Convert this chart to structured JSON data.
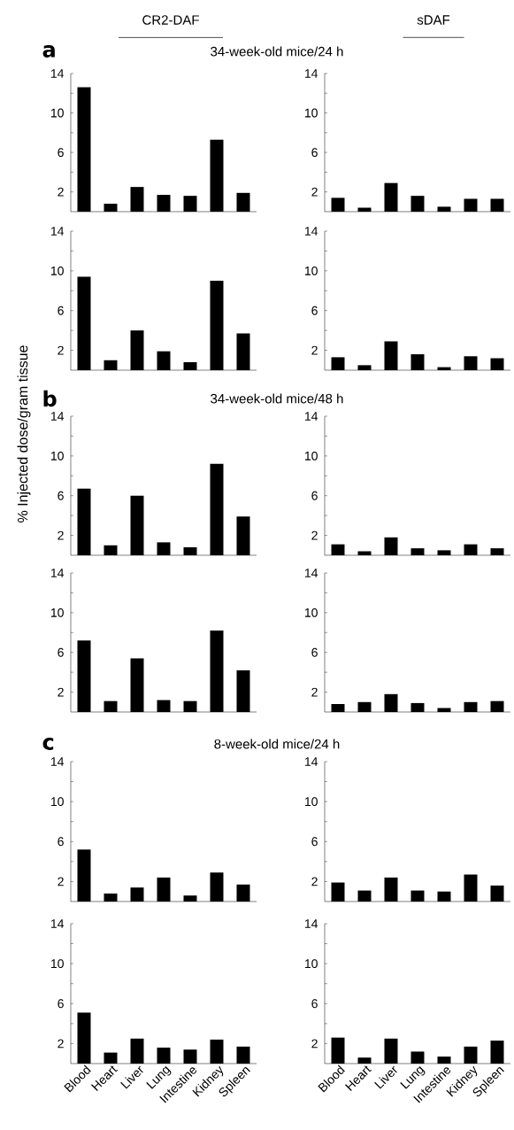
{
  "chart_data": [
    {
      "type": "bar",
      "title": "CR2-DAF",
      "annotations": [
        "a",
        "34-week-old mice/24 h"
      ],
      "categories": [
        null,
        null,
        null,
        null,
        null,
        null,
        null
      ],
      "values": [
        12.6,
        0.8,
        2.5,
        1.7,
        1.6,
        7.3,
        1.9
      ],
      "color": "#000000",
      "ylim": [
        0,
        14
      ],
      "yticks": [
        2,
        {
          "value": 4,
          "label": null
        },
        6,
        {
          "value": 8,
          "label": null
        },
        10,
        {
          "value": 12,
          "label": null
        },
        14
      ],
      "tick_labels": "y"
    },
    {
      "type": "bar",
      "title": "sDAF",
      "categories": [
        null,
        null,
        null,
        null,
        null,
        null,
        null
      ],
      "values": [
        1.4,
        0.4,
        2.9,
        1.6,
        0.5,
        1.3,
        1.3
      ],
      "color": "#000000",
      "ylim": [
        0,
        14
      ],
      "yticks": [
        2,
        {
          "value": 4,
          "label": null
        },
        6,
        {
          "value": 8,
          "label": null
        },
        10,
        {
          "value": 12,
          "label": null
        },
        14
      ],
      "tick_labels": "y"
    },
    {
      "type": "bar",
      "categories": [
        null,
        null,
        null,
        null,
        null,
        null,
        null
      ],
      "values": [
        9.4,
        1.0,
        4.0,
        1.9,
        0.8,
        9.0,
        3.7
      ],
      "color": "#000000",
      "ylim": [
        0,
        14
      ],
      "yticks": [
        2,
        {
          "value": 4,
          "label": null
        },
        6,
        {
          "value": 8,
          "label": null
        },
        10,
        {
          "value": 12,
          "label": null
        },
        14
      ],
      "tick_labels": "y"
    },
    {
      "type": "bar",
      "categories": [
        null,
        null,
        null,
        null,
        null,
        null,
        null
      ],
      "values": [
        1.3,
        0.5,
        2.9,
        1.6,
        0.3,
        1.4,
        1.2
      ],
      "color": "#000000",
      "ylim": [
        0,
        14
      ],
      "yticks": [
        2,
        {
          "value": 4,
          "label": null
        },
        6,
        {
          "value": 8,
          "label": null
        },
        10,
        {
          "value": 12,
          "label": null
        },
        14
      ],
      "tick_labels": "y"
    },
    {
      "type": "bar",
      "ylabel": "% Injected dose/gram tissue",
      "annotations": [
        "b",
        "34-week-old mice/48 h"
      ],
      "categories": [
        null,
        null,
        null,
        null,
        null,
        null,
        null
      ],
      "values": [
        6.7,
        1.0,
        6.0,
        1.3,
        0.8,
        9.2,
        3.9
      ],
      "color": "#000000",
      "ylim": [
        0,
        14
      ],
      "yticks": [
        2,
        {
          "value": 4,
          "label": null
        },
        6,
        {
          "value": 8,
          "label": null
        },
        10,
        {
          "value": 12,
          "label": null
        },
        14
      ],
      "tick_labels": "y"
    },
    {
      "type": "bar",
      "categories": [
        null,
        null,
        null,
        null,
        null,
        null,
        null
      ],
      "values": [
        1.1,
        0.4,
        1.8,
        0.7,
        0.5,
        1.1,
        0.7
      ],
      "color": "#000000",
      "ylim": [
        0,
        14
      ],
      "yticks": [
        2,
        {
          "value": 4,
          "label": null
        },
        6,
        {
          "value": 8,
          "label": null
        },
        10,
        {
          "value": 12,
          "label": null
        },
        14
      ],
      "tick_labels": "y"
    },
    {
      "type": "bar",
      "categories": [
        null,
        null,
        null,
        null,
        null,
        null,
        null
      ],
      "values": [
        7.2,
        1.1,
        5.4,
        1.2,
        1.1,
        8.2,
        4.2
      ],
      "color": "#000000",
      "ylim": [
        0,
        14
      ],
      "yticks": [
        2,
        {
          "value": 4,
          "label": null
        },
        6,
        {
          "value": 8,
          "label": null
        },
        10,
        {
          "value": 12,
          "label": null
        },
        14
      ],
      "tick_labels": "y"
    },
    {
      "type": "bar",
      "categories": [
        null,
        null,
        null,
        null,
        null,
        null,
        null
      ],
      "values": [
        0.8,
        1.0,
        1.8,
        0.9,
        0.4,
        1.0,
        1.1
      ],
      "color": "#000000",
      "ylim": [
        0,
        14
      ],
      "yticks": [
        2,
        {
          "value": 4,
          "label": null
        },
        6,
        {
          "value": 8,
          "label": null
        },
        10,
        {
          "value": 12,
          "label": null
        },
        14
      ],
      "tick_labels": "y"
    },
    {
      "type": "bar",
      "annotations": [
        "c",
        "8-week-old mice/24 h"
      ],
      "categories": [
        null,
        null,
        null,
        null,
        null,
        null,
        null
      ],
      "values": [
        5.2,
        0.8,
        1.4,
        2.4,
        0.6,
        2.9,
        1.7
      ],
      "color": "#000000",
      "ylim": [
        0,
        14
      ],
      "yticks": [
        2,
        {
          "value": 4,
          "label": null
        },
        6,
        {
          "value": 8,
          "label": null
        },
        10,
        {
          "value": 12,
          "label": null
        },
        14
      ],
      "tick_labels": "y"
    },
    {
      "type": "bar",
      "categories": [
        null,
        null,
        null,
        null,
        null,
        null,
        null
      ],
      "values": [
        1.9,
        1.1,
        2.4,
        1.1,
        1.0,
        2.7,
        1.6
      ],
      "color": "#000000",
      "ylim": [
        0,
        14
      ],
      "yticks": [
        2,
        {
          "value": 4,
          "label": null
        },
        6,
        {
          "value": 8,
          "label": null
        },
        10,
        {
          "value": 12,
          "label": null
        },
        14
      ],
      "tick_labels": "y"
    },
    {
      "type": "bar",
      "categories": [
        "Blood",
        "Heart",
        "Liver",
        "Lung",
        "Intestine",
        "Kidney",
        "Spleen"
      ],
      "values": [
        5.1,
        1.1,
        2.5,
        1.6,
        1.4,
        2.4,
        1.7
      ],
      "color": "#000000",
      "ylim": [
        0,
        14
      ],
      "yticks": [
        2,
        {
          "value": 4,
          "label": null
        },
        6,
        {
          "value": 8,
          "label": null
        },
        10,
        {
          "value": 12,
          "label": null
        },
        14
      ]
    },
    {
      "type": "bar",
      "categories": [
        "Blood",
        "Heart",
        "Liver",
        "Lung",
        "Intestine",
        "Kidney",
        "Spleen"
      ],
      "values": [
        2.6,
        0.6,
        2.5,
        1.2,
        0.7,
        1.7,
        2.3
      ],
      "color": "#000000",
      "ylim": [
        0,
        14
      ],
      "yticks": [
        2,
        {
          "value": 4,
          "label": null
        },
        6,
        {
          "value": 8,
          "label": null
        },
        10,
        {
          "value": 12,
          "label": null
        },
        14
      ]
    }
  ]
}
